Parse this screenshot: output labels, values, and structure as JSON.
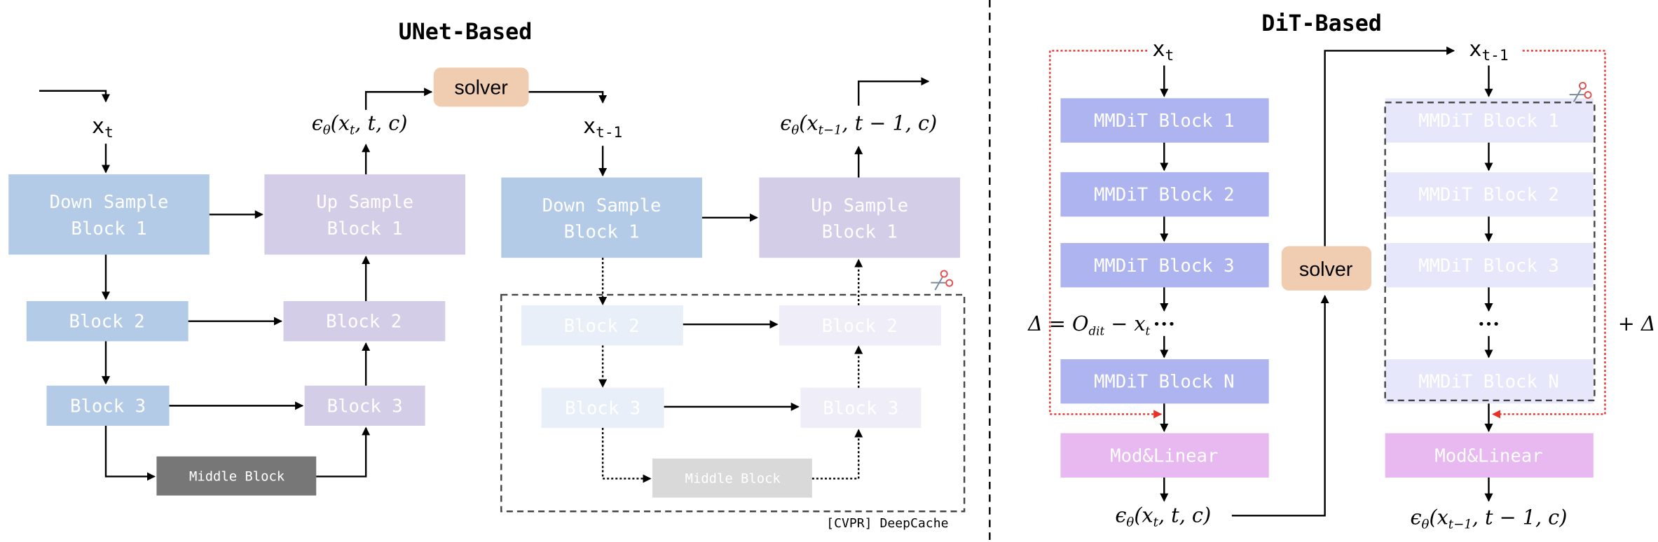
{
  "unet": {
    "title": "UNet-Based",
    "x_t": [
      "x",
      "t"
    ],
    "x_t1": [
      "x",
      "t-1"
    ],
    "eps_t": [
      "ϵ",
      "θ",
      "(x",
      "t",
      ", t, c)"
    ],
    "eps_t1": [
      "ϵ",
      "θ",
      "(x",
      "t−1",
      ", t − 1, c)"
    ],
    "solver": "solver",
    "down_block1": [
      "Down Sample",
      "Block 1"
    ],
    "up_block1": [
      "Up Sample",
      "Block 1"
    ],
    "block2": "Block 2",
    "block3": "Block 3",
    "middle_block": "Middle Block",
    "citation": "[CVPR] DeepCache"
  },
  "dit": {
    "title": "DiT-Based",
    "x_t": [
      "x",
      "t"
    ],
    "x_t1": [
      "x",
      "t-1"
    ],
    "blocks": [
      "MMDiT Block 1",
      "MMDiT Block 2",
      "MMDiT Block 3",
      "MMDiT Block N"
    ],
    "ellipsis": "•••",
    "mod_linear": "Mod&Linear",
    "solver": "solver",
    "eps_t": [
      "ϵ",
      "θ",
      "(x",
      "t",
      ", t, c)"
    ],
    "eps_t1": [
      "ϵ",
      "θ",
      "(x",
      "t−1",
      ", t − 1, c)"
    ],
    "delta_def": [
      "Δ = O",
      "dit",
      " − x",
      "t"
    ],
    "plus_delta": "+ Δ"
  },
  "colors": {
    "down_block": "#b4cbe8",
    "up_block": "#d4cde8",
    "down_block_cached": "#e8eff8",
    "up_block_cached": "#efedf8",
    "middle_block": "#777777",
    "middle_block_cached": "#d9d9d9",
    "mmdit_block": "#adb4f0",
    "mmdit_block_cached": "#e6e7fa",
    "mod_linear": "#e8b8f0",
    "solver": "#f0cdb0",
    "residual_arrow": "#e8322a"
  },
  "icons": {
    "cache_marker": "scissors-icon"
  }
}
